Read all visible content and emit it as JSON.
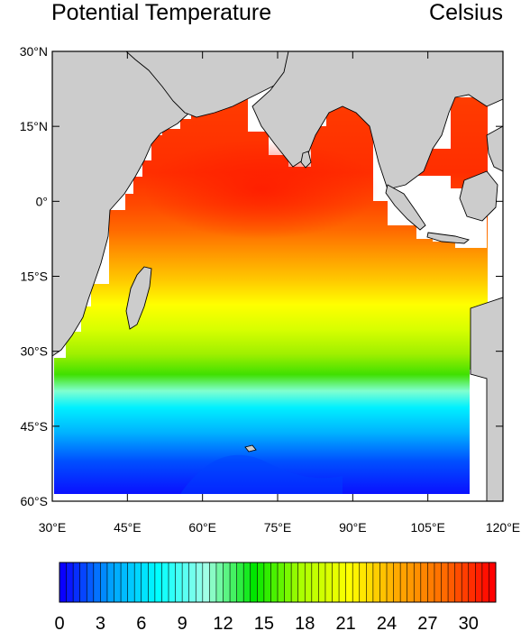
{
  "header": {
    "title_left": "Potential Temperature",
    "title_right": "Celsius"
  },
  "map": {
    "lon_range": [
      30,
      120
    ],
    "lat_range": [
      -60,
      30
    ],
    "lon_ticks": [
      {
        "value": 30,
        "label": "30°E"
      },
      {
        "value": 45,
        "label": "45°E"
      },
      {
        "value": 60,
        "label": "60°E"
      },
      {
        "value": 75,
        "label": "75°E"
      },
      {
        "value": 90,
        "label": "90°E"
      },
      {
        "value": 105,
        "label": "105°E"
      },
      {
        "value": 120,
        "label": "120°E"
      }
    ],
    "lat_ticks": [
      {
        "value": 30,
        "label": "30°N"
      },
      {
        "value": 15,
        "label": "15°N"
      },
      {
        "value": 0,
        "label": "0°"
      },
      {
        "value": -15,
        "label": "15°S"
      },
      {
        "value": -30,
        "label": "30°S"
      },
      {
        "value": -45,
        "label": "45°S"
      },
      {
        "value": -60,
        "label": "60°S"
      }
    ],
    "land_color": "#cccccc",
    "ocean_no_data_color": "#ffffff"
  },
  "colorbar": {
    "min": 0,
    "max": 32,
    "step": 0.5,
    "labels": [
      "0",
      "3",
      "6",
      "9",
      "12",
      "15",
      "18",
      "21",
      "24",
      "27",
      "30"
    ],
    "label_values": [
      0,
      3,
      6,
      9,
      12,
      15,
      18,
      21,
      24,
      27,
      30
    ],
    "colors": [
      "#0a00ff",
      "#00a0ff",
      "#00ffff",
      "#a0ffe6",
      "#00e600",
      "#aaff00",
      "#ffff00",
      "#ffaa00",
      "#ff6a00",
      "#ff0000"
    ]
  }
}
